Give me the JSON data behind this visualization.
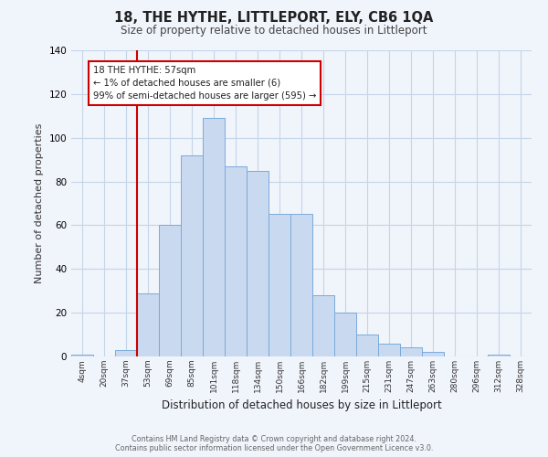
{
  "title": "18, THE HYTHE, LITTLEPORT, ELY, CB6 1QA",
  "subtitle": "Size of property relative to detached houses in Littleport",
  "xlabel": "Distribution of detached houses by size in Littleport",
  "ylabel": "Number of detached properties",
  "bar_labels": [
    "4sqm",
    "20sqm",
    "37sqm",
    "53sqm",
    "69sqm",
    "85sqm",
    "101sqm",
    "118sqm",
    "134sqm",
    "150sqm",
    "166sqm",
    "182sqm",
    "199sqm",
    "215sqm",
    "231sqm",
    "247sqm",
    "263sqm",
    "280sqm",
    "296sqm",
    "312sqm",
    "328sqm"
  ],
  "bar_values": [
    1,
    0,
    3,
    29,
    60,
    92,
    109,
    87,
    85,
    65,
    65,
    28,
    20,
    10,
    6,
    4,
    2,
    0,
    0,
    1,
    0
  ],
  "bar_color": "#c8d9f0",
  "bar_edge_color": "#7aabdb",
  "vline_x": 3,
  "vline_color": "#cc0000",
  "annotation_text": "18 THE HYTHE: 57sqm\n← 1% of detached houses are smaller (6)\n99% of semi-detached houses are larger (595) →",
  "annotation_box_color": "#ffffff",
  "annotation_box_edge": "#cc0000",
  "footer_line1": "Contains HM Land Registry data © Crown copyright and database right 2024.",
  "footer_line2": "Contains public sector information licensed under the Open Government Licence v3.0.",
  "ylim": [
    0,
    140
  ],
  "background_color": "#f0f4fb",
  "grid_color": "#c5d5e8"
}
